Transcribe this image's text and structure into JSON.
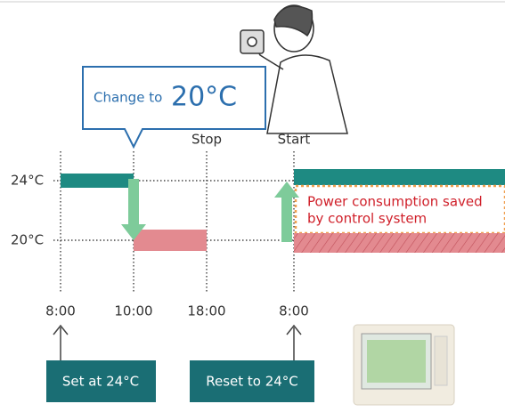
{
  "callout": {
    "prefix": "Change to",
    "value": "20°C"
  },
  "markers": {
    "stop": "Stop",
    "start": "Start"
  },
  "levels": [
    "24°C",
    "20°C"
  ],
  "note": [
    "Power consumption saved",
    "by control system"
  ],
  "times": [
    "8:00",
    "10:00",
    "18:00",
    "8:00"
  ],
  "boxes": [
    "Set at 24°C",
    "Reset to 24°C"
  ]
}
